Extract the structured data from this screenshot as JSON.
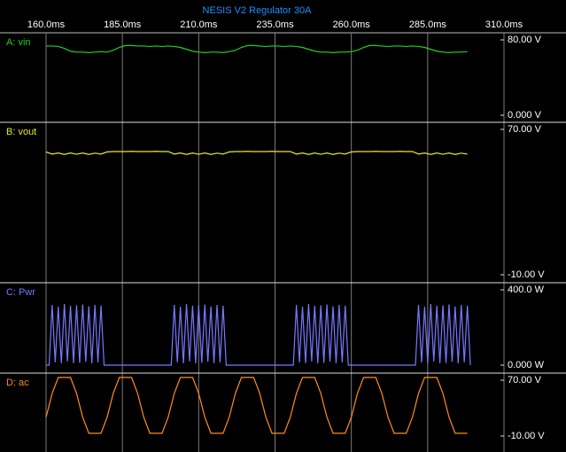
{
  "chart_data": [
    {
      "type": "line",
      "title": "NESIS V2 Regulator 30A",
      "xlim": [
        160,
        310
      ],
      "xticks": [
        {
          "value": 160,
          "label": "160.0ms"
        },
        {
          "value": 185,
          "label": "185.0ms"
        },
        {
          "value": 210,
          "label": "210.0ms"
        },
        {
          "value": 235,
          "label": "235.0ms"
        },
        {
          "value": 260,
          "label": "260.0ms"
        },
        {
          "value": 285,
          "label": "285.0ms"
        },
        {
          "value": 310,
          "label": "310.0ms"
        }
      ],
      "grid": true,
      "ylim": [
        -6.6,
        86.6
      ],
      "yticks": [
        {
          "value": 80,
          "label": "80.00 V"
        },
        {
          "value": 0,
          "label": "0.000 V"
        }
      ],
      "x": [
        160,
        162,
        164,
        166,
        168,
        170,
        172,
        174,
        176,
        178,
        180,
        182,
        184,
        186,
        188,
        190,
        192,
        194,
        196,
        198,
        200,
        202,
        204,
        206,
        208,
        210,
        212,
        214,
        216,
        218,
        220,
        222,
        224,
        226,
        228,
        230,
        232,
        234,
        236,
        238,
        240,
        242,
        244,
        246,
        248,
        250,
        252,
        254,
        256,
        258,
        260,
        262,
        264,
        266,
        268,
        270,
        272,
        274,
        276,
        278,
        280,
        282,
        284,
        286,
        288,
        290,
        292,
        294,
        296,
        298
      ],
      "series": [
        {
          "name": "A: vin",
          "color": "#22d022",
          "values": [
            73.5,
            73.5,
            73,
            71,
            68,
            67,
            67,
            66.5,
            67,
            67.5,
            67,
            69,
            72,
            74,
            74,
            73.5,
            73.5,
            73,
            73.5,
            73,
            73.5,
            73,
            72,
            70,
            68,
            67,
            66.5,
            67,
            67,
            66.5,
            67.5,
            69,
            72,
            74,
            74,
            73.5,
            73,
            73.5,
            73.5,
            73,
            73.5,
            73,
            72,
            70,
            68,
            67,
            67,
            66.5,
            67,
            67,
            67.5,
            69,
            72,
            74,
            74,
            73.5,
            73,
            73.5,
            73.5,
            73,
            73.5,
            73,
            72,
            70,
            68,
            67,
            66.5,
            67,
            67,
            67.5
          ]
        }
      ]
    },
    {
      "type": "line",
      "ylim": [
        -13.9,
        73.4
      ],
      "yticks": [
        {
          "value": 70,
          "label": "70.00 V"
        },
        {
          "value": -10,
          "label": "-10.00 V"
        }
      ],
      "x": [
        160,
        162,
        164,
        166,
        168,
        170,
        172,
        174,
        176,
        178,
        180,
        182,
        184,
        186,
        188,
        190,
        192,
        194,
        196,
        198,
        200,
        202,
        204,
        206,
        208,
        210,
        212,
        214,
        216,
        218,
        220,
        222,
        224,
        226,
        228,
        230,
        232,
        234,
        236,
        238,
        240,
        242,
        244,
        246,
        248,
        250,
        252,
        254,
        256,
        258,
        260,
        262,
        264,
        266,
        268,
        270,
        272,
        274,
        276,
        278,
        280,
        282,
        284,
        286,
        288,
        290,
        292,
        294,
        296,
        298
      ],
      "series": [
        {
          "name": "B: vout",
          "color": "#e8e82a",
          "values": [
            57.6,
            56.4,
            57.0,
            56.2,
            57.0,
            56.3,
            57.0,
            56.2,
            56.9,
            56.4,
            57.6,
            57.8,
            57.8,
            57.8,
            57.9,
            57.8,
            57.8,
            57.8,
            57.9,
            57.8,
            57.8,
            56.4,
            57.0,
            56.2,
            57.0,
            56.3,
            57.0,
            56.2,
            56.9,
            56.4,
            57.6,
            57.8,
            57.8,
            57.9,
            57.8,
            57.8,
            57.8,
            57.9,
            57.8,
            57.8,
            57.8,
            56.4,
            57.0,
            56.2,
            57.0,
            56.3,
            57.0,
            56.2,
            56.9,
            56.4,
            57.6,
            57.8,
            57.8,
            57.8,
            57.9,
            57.8,
            57.8,
            57.8,
            57.9,
            57.8,
            57.8,
            56.4,
            57.0,
            56.2,
            57.0,
            56.3,
            57.0,
            56.2,
            56.9,
            56.4
          ]
        }
      ]
    },
    {
      "type": "line",
      "ylim": [
        -37.6,
        433
      ],
      "yticks": [
        {
          "value": 400,
          "label": "400.0 W"
        },
        {
          "value": 0,
          "label": "0.000 W"
        }
      ],
      "x": [
        160,
        161,
        162,
        163,
        164,
        165,
        166,
        167,
        168,
        169,
        170,
        171,
        172,
        173,
        174,
        175,
        176,
        177,
        178,
        179,
        180,
        181,
        182,
        183,
        184,
        185,
        186,
        187,
        188,
        189,
        190,
        191,
        192,
        193,
        194,
        195,
        196,
        197,
        198,
        199,
        200,
        201,
        202,
        203,
        204,
        205,
        206,
        207,
        208,
        209,
        210,
        211,
        212,
        213,
        214,
        215,
        216,
        217,
        218,
        219,
        220,
        221,
        222,
        223,
        224,
        225,
        226,
        227,
        228,
        229,
        230,
        231,
        232,
        233,
        234,
        235,
        236,
        237,
        238,
        239,
        240,
        241,
        242,
        243,
        244,
        245,
        246,
        247,
        248,
        249,
        250,
        251,
        252,
        253,
        254,
        255,
        256,
        257,
        258,
        259,
        260,
        261,
        262,
        263,
        264,
        265,
        266,
        267,
        268,
        269,
        270,
        271,
        272,
        273,
        274,
        275,
        276,
        277,
        278,
        279,
        280,
        281,
        282,
        283,
        284,
        285,
        286,
        287,
        288,
        289,
        290,
        291,
        292,
        293,
        294,
        295,
        296,
        297,
        298,
        299
      ],
      "series": [
        {
          "name": "C: Pwr",
          "color": "#7878ff",
          "values": [
            0,
            0,
            320,
            15,
            310,
            10,
            325,
            20,
            315,
            10,
            318,
            12,
            322,
            18,
            312,
            10,
            320,
            15,
            316,
            0,
            0,
            0,
            0,
            0,
            0,
            0,
            0,
            0,
            0,
            0,
            0,
            0,
            0,
            0,
            0,
            0,
            0,
            0,
            0,
            0,
            0,
            0,
            320,
            15,
            310,
            10,
            325,
            20,
            315,
            10,
            318,
            12,
            322,
            18,
            312,
            10,
            320,
            15,
            316,
            0,
            0,
            0,
            0,
            0,
            0,
            0,
            0,
            0,
            0,
            0,
            0,
            0,
            0,
            0,
            0,
            0,
            0,
            0,
            0,
            0,
            0,
            0,
            320,
            15,
            310,
            10,
            325,
            20,
            315,
            10,
            318,
            12,
            322,
            18,
            312,
            10,
            320,
            15,
            316,
            0,
            0,
            0,
            0,
            0,
            0,
            0,
            0,
            0,
            0,
            0,
            0,
            0,
            0,
            0,
            0,
            0,
            0,
            0,
            0,
            0,
            0,
            0,
            320,
            15,
            310,
            10,
            325,
            20,
            315,
            10,
            318,
            12,
            322,
            18,
            312,
            10,
            320,
            15,
            316,
            0
          ]
        }
      ]
    },
    {
      "type": "line",
      "ylim": [
        -30.3,
        78.9
      ],
      "yticks": [
        {
          "value": 70,
          "label": "70.00 V"
        },
        {
          "value": -10,
          "label": "-10.00 V"
        }
      ],
      "x": [
        160,
        162,
        164,
        166,
        168,
        170,
        172,
        174,
        176,
        178,
        180,
        182,
        184,
        186,
        188,
        190,
        192,
        194,
        196,
        198,
        200,
        202,
        204,
        206,
        208,
        210,
        212,
        214,
        216,
        218,
        220,
        222,
        224,
        226,
        228,
        230,
        232,
        234,
        236,
        238,
        240,
        242,
        244,
        246,
        248,
        250,
        252,
        254,
        256,
        258,
        260,
        262,
        264,
        266,
        268,
        270,
        272,
        274,
        276,
        278,
        280,
        282,
        284,
        286,
        288,
        290,
        292,
        294,
        296,
        298
      ],
      "series": [
        {
          "name": "D: ac",
          "color": "#ff8c1e",
          "values": [
            17,
            51,
            74,
            74,
            74,
            51,
            17,
            -6,
            -6,
            -6,
            17,
            51,
            74,
            74,
            74,
            51,
            17,
            -6,
            -6,
            -6,
            17,
            51,
            74,
            74,
            74,
            51,
            17,
            -6,
            -6,
            -6,
            17,
            51,
            74,
            74,
            74,
            51,
            17,
            -6,
            -6,
            -6,
            17,
            51,
            74,
            74,
            74,
            51,
            17,
            -6,
            -6,
            -6,
            17,
            51,
            74,
            74,
            74,
            51,
            17,
            -6,
            -6,
            -6,
            17,
            51,
            74,
            74,
            74,
            51,
            17,
            -6,
            -6,
            -6
          ]
        }
      ]
    }
  ]
}
